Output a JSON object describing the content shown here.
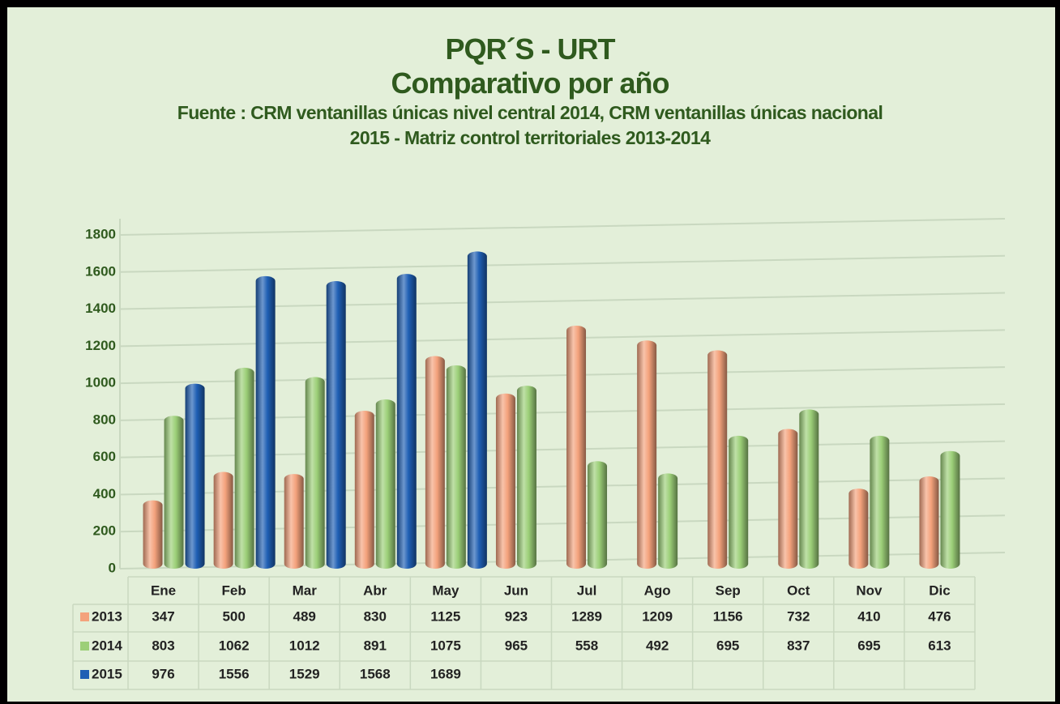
{
  "chart_data": {
    "type": "bar",
    "title": [
      "PQR´S - URT",
      "Comparativo por año"
    ],
    "subtitle": [
      "Fuente : CRM ventanillas únicas  nivel central 2014, CRM ventanillas únicas nacional",
      "2015 - Matriz control territoriales 2013-2014"
    ],
    "categories": [
      "Ene",
      "Feb",
      "Mar",
      "Abr",
      "May",
      "Jun",
      "Jul",
      "Ago",
      "Sep",
      "Oct",
      "Nov",
      "Dic"
    ],
    "series": [
      {
        "name": "2013",
        "color": "#f4a27c",
        "values": [
          347,
          500,
          489,
          830,
          1125,
          923,
          1289,
          1209,
          1156,
          732,
          410,
          476
        ]
      },
      {
        "name": "2014",
        "color": "#9ccf78",
        "values": [
          803,
          1062,
          1012,
          891,
          1075,
          965,
          558,
          492,
          695,
          837,
          695,
          613
        ]
      },
      {
        "name": "2015",
        "color": "#1f5fb4",
        "values": [
          976,
          1556,
          1529,
          1568,
          1689,
          null,
          null,
          null,
          null,
          null,
          null,
          null
        ]
      }
    ],
    "ylim": [
      0,
      1800
    ],
    "yticks": [
      0,
      200,
      400,
      600,
      800,
      1000,
      1200,
      1400,
      1600,
      1800
    ],
    "grid": true
  }
}
